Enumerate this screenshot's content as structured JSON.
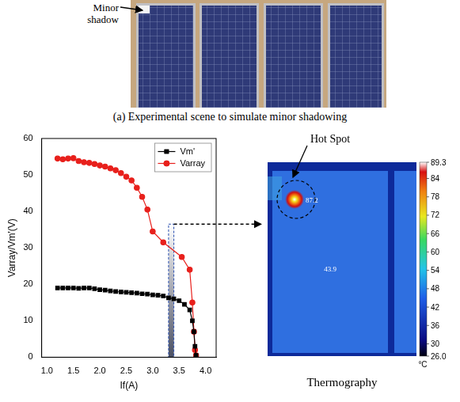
{
  "photo": {
    "annotation": "Minor shadow"
  },
  "caption": "(a) Experimental scene to simulate minor shadowing",
  "chart_data": {
    "type": "line",
    "x_label": "If(A)",
    "y_label": "Varray/Vm'(V)",
    "xlim": [
      0.9,
      4.2
    ],
    "xticks": [
      {
        "value": 1,
        "label": "1.0"
      },
      1.5,
      {
        "value": 2,
        "label": "2.0"
      },
      2.5,
      {
        "value": 3,
        "label": "3.0"
      },
      3.5,
      {
        "value": 4,
        "label": "4.0"
      }
    ],
    "ylim": [
      0,
      60
    ],
    "yticks": [
      0,
      10,
      20,
      30,
      40,
      50,
      60
    ],
    "grid": false,
    "legend": "upper right",
    "series": [
      {
        "name": "Vm'",
        "color": "#000000",
        "marker": "square",
        "line_style": "solid",
        "x": [
          1.2,
          1.3,
          1.4,
          1.5,
          1.6,
          1.7,
          1.8,
          1.9,
          2.0,
          2.1,
          2.2,
          2.3,
          2.4,
          2.5,
          2.6,
          2.7,
          2.8,
          2.9,
          3.0,
          3.1,
          3.2,
          3.3,
          3.4,
          3.5,
          3.6,
          3.7,
          3.75,
          3.78,
          3.8,
          3.82
        ],
        "values": [
          19,
          19,
          19,
          19,
          18.9,
          19,
          19,
          18.8,
          18.5,
          18.4,
          18.2,
          18,
          17.9,
          17.8,
          17.7,
          17.6,
          17.4,
          17.3,
          17.1,
          17,
          16.8,
          16.3,
          16,
          15.5,
          14.5,
          13,
          10,
          7,
          3,
          0.5
        ]
      },
      {
        "name": "Varray",
        "color": "#e8201c",
        "marker": "circle",
        "line_style": "solid",
        "x": [
          1.2,
          1.3,
          1.4,
          1.5,
          1.6,
          1.7,
          1.8,
          1.9,
          2.0,
          2.1,
          2.2,
          2.3,
          2.4,
          2.5,
          2.6,
          2.7,
          2.8,
          2.9,
          3.0,
          3.2,
          3.55,
          3.7,
          3.75,
          3.78,
          3.8,
          3.82
        ],
        "values": [
          54.5,
          54.3,
          54.5,
          54.6,
          53.8,
          53.5,
          53.3,
          53,
          52.6,
          52.3,
          51.8,
          51.3,
          50.5,
          49.5,
          48.5,
          46.5,
          44,
          40.5,
          34.5,
          31.5,
          27.5,
          24,
          15,
          7,
          2,
          0.5
        ]
      }
    ],
    "highlight": {
      "x": [
        3.3,
        3.4
      ],
      "y": [
        0,
        36.5
      ]
    }
  },
  "thermography": {
    "title": "Thermography",
    "annotation": "Hot Spot",
    "readings": [
      87.2,
      43.9
    ],
    "colorbar": {
      "range": [
        26.0,
        89.3
      ],
      "ticks": [
        89.3,
        84,
        78,
        72,
        66,
        60,
        54,
        48,
        42,
        36,
        30,
        {
          "value": 26.0,
          "label": "26.0"
        }
      ],
      "unit": "°C"
    }
  }
}
